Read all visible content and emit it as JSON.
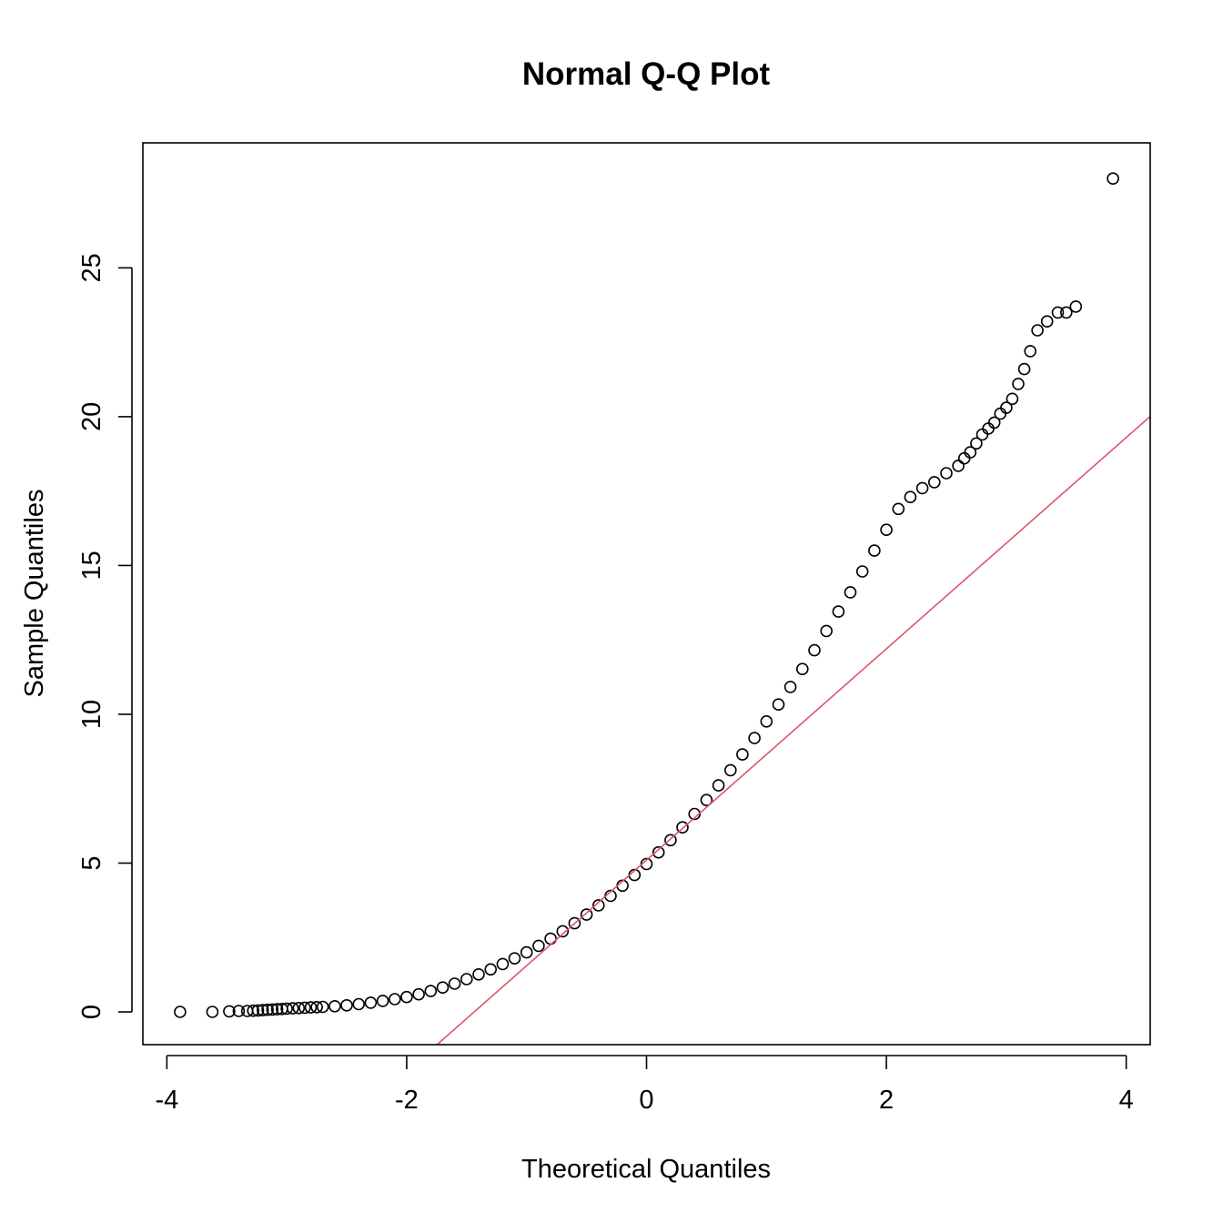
{
  "chart_data": {
    "type": "scatter",
    "title": "Normal Q-Q Plot",
    "xlabel": "Theoretical Quantiles",
    "ylabel": "Sample Quantiles",
    "xlim": [
      -4.2,
      4.2
    ],
    "ylim": [
      -1.1,
      29.2
    ],
    "x_ticks": [
      -4,
      -2,
      0,
      2,
      4
    ],
    "y_ticks": [
      0,
      5,
      10,
      15,
      20,
      25
    ],
    "grid": false,
    "legend": "none",
    "reference_line": {
      "name": "qqline",
      "color": "#DF536B",
      "intercept": 5.1,
      "slope": 3.55
    },
    "point_color": "#000000",
    "series": [
      {
        "points": [
          [
            -3.89,
            0.0
          ],
          [
            -3.62,
            0.0
          ],
          [
            -3.48,
            0.02
          ],
          [
            -3.4,
            0.03
          ],
          [
            -3.33,
            0.03
          ],
          [
            -3.28,
            0.04
          ],
          [
            -3.24,
            0.05
          ],
          [
            -3.2,
            0.06
          ],
          [
            -3.16,
            0.07
          ],
          [
            -3.12,
            0.08
          ],
          [
            -3.08,
            0.09
          ],
          [
            -3.04,
            0.1
          ],
          [
            -3.0,
            0.11
          ],
          [
            -2.95,
            0.12
          ],
          [
            -2.9,
            0.13
          ],
          [
            -2.85,
            0.14
          ],
          [
            -2.8,
            0.15
          ],
          [
            -2.75,
            0.16
          ],
          [
            -2.7,
            0.17
          ],
          [
            -2.6,
            0.19
          ],
          [
            -2.5,
            0.22
          ],
          [
            -2.4,
            0.26
          ],
          [
            -2.3,
            0.31
          ],
          [
            -2.2,
            0.37
          ],
          [
            -2.1,
            0.43
          ],
          [
            -2.0,
            0.5
          ],
          [
            -1.9,
            0.59
          ],
          [
            -1.8,
            0.7
          ],
          [
            -1.7,
            0.82
          ],
          [
            -1.6,
            0.95
          ],
          [
            -1.5,
            1.1
          ],
          [
            -1.4,
            1.26
          ],
          [
            -1.3,
            1.43
          ],
          [
            -1.2,
            1.61
          ],
          [
            -1.1,
            1.8
          ],
          [
            -1.0,
            2.0
          ],
          [
            -0.9,
            2.22
          ],
          [
            -0.8,
            2.46
          ],
          [
            -0.7,
            2.71
          ],
          [
            -0.6,
            2.98
          ],
          [
            -0.5,
            3.27
          ],
          [
            -0.4,
            3.58
          ],
          [
            -0.3,
            3.9
          ],
          [
            -0.2,
            4.24
          ],
          [
            -0.1,
            4.6
          ],
          [
            0.0,
            4.97
          ],
          [
            0.1,
            5.36
          ],
          [
            0.2,
            5.77
          ],
          [
            0.3,
            6.2
          ],
          [
            0.4,
            6.65
          ],
          [
            0.5,
            7.12
          ],
          [
            0.6,
            7.61
          ],
          [
            0.7,
            8.12
          ],
          [
            0.8,
            8.65
          ],
          [
            0.9,
            9.2
          ],
          [
            1.0,
            9.76
          ],
          [
            1.1,
            10.33
          ],
          [
            1.2,
            10.92
          ],
          [
            1.3,
            11.52
          ],
          [
            1.4,
            12.15
          ],
          [
            1.5,
            12.8
          ],
          [
            1.6,
            13.45
          ],
          [
            1.7,
            14.1
          ],
          [
            1.8,
            14.8
          ],
          [
            1.9,
            15.5
          ],
          [
            2.0,
            16.2
          ],
          [
            2.1,
            16.9
          ],
          [
            2.2,
            17.3
          ],
          [
            2.3,
            17.6
          ],
          [
            2.4,
            17.8
          ],
          [
            2.5,
            18.1
          ],
          [
            2.6,
            18.35
          ],
          [
            2.65,
            18.6
          ],
          [
            2.7,
            18.8
          ],
          [
            2.75,
            19.1
          ],
          [
            2.8,
            19.4
          ],
          [
            2.85,
            19.6
          ],
          [
            2.9,
            19.8
          ],
          [
            2.95,
            20.1
          ],
          [
            3.0,
            20.3
          ],
          [
            3.05,
            20.6
          ],
          [
            3.1,
            21.1
          ],
          [
            3.15,
            21.6
          ],
          [
            3.2,
            22.2
          ],
          [
            3.26,
            22.9
          ],
          [
            3.34,
            23.2
          ],
          [
            3.43,
            23.5
          ],
          [
            3.5,
            23.5
          ],
          [
            3.58,
            23.7
          ],
          [
            3.89,
            28.0
          ]
        ]
      }
    ]
  }
}
